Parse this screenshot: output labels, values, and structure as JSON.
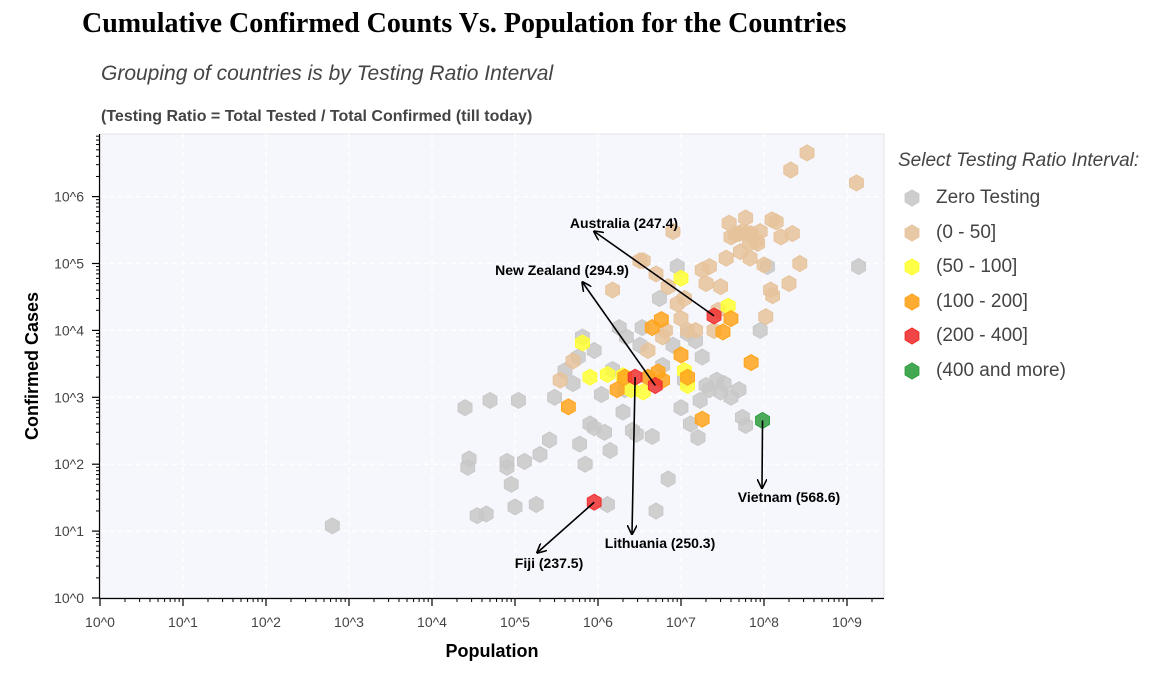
{
  "header": {
    "title": "Cumulative Confirmed Counts Vs. Population for the Countries",
    "subtitle": "Grouping of countries is by Testing Ratio Interval",
    "note": "(Testing Ratio = Total Tested / Total Confirmed (till today)"
  },
  "legend": {
    "title": "Select Testing Ratio Interval:",
    "items": [
      {
        "label": "Zero Testing",
        "color": "#c8c8c8"
      },
      {
        "label": "(0 - 50]",
        "color": "#e6c39b"
      },
      {
        "label": "(50 - 100]",
        "color": "#ffff33"
      },
      {
        "label": "(100 - 200]",
        "color": "#ffa41c"
      },
      {
        "label": "(200 - 400]",
        "color": "#f03030"
      },
      {
        "label": "(400 and more)",
        "color": "#2e9e3e"
      }
    ]
  },
  "chart_data": {
    "type": "scatter",
    "xlabel": "Population",
    "ylabel": "Confirmed Cases",
    "xscale": "log",
    "yscale": "log",
    "xlim": [
      1,
      2000000000
    ],
    "ylim": [
      1,
      8000000
    ],
    "grid": true,
    "legend_position": "right",
    "xticks": [
      "10^0",
      "10^1",
      "10^2",
      "10^3",
      "10^4",
      "10^5",
      "10^6",
      "10^7",
      "10^8",
      "10^9"
    ],
    "yticks": [
      "10^0",
      "10^1",
      "10^2",
      "10^3",
      "10^4",
      "10^5",
      "10^6"
    ],
    "series": [
      {
        "name": "Zero Testing",
        "color": "#c8c8c8",
        "points": [
          [
            630,
            12
          ],
          [
            25000,
            700
          ],
          [
            28000,
            120
          ],
          [
            27000,
            90
          ],
          [
            50000,
            900
          ],
          [
            35000,
            17
          ],
          [
            45000,
            18
          ],
          [
            80000,
            110
          ],
          [
            80000,
            90
          ],
          [
            90000,
            50
          ],
          [
            100000,
            23
          ],
          [
            110000,
            900
          ],
          [
            130000,
            110
          ],
          [
            180000,
            25
          ],
          [
            200000,
            140
          ],
          [
            260000,
            230
          ],
          [
            300000,
            1000
          ],
          [
            400000,
            2500
          ],
          [
            500000,
            1600
          ],
          [
            600000,
            200
          ],
          [
            580000,
            4000
          ],
          [
            700000,
            100
          ],
          [
            650000,
            8000
          ],
          [
            800000,
            400
          ],
          [
            900000,
            350
          ],
          [
            900000,
            5000
          ],
          [
            1100000,
            1100
          ],
          [
            1200000,
            300
          ],
          [
            1300000,
            25
          ],
          [
            1400000,
            160
          ],
          [
            1500000,
            2600
          ],
          [
            1800000,
            11000
          ],
          [
            2000000,
            600
          ],
          [
            2100000,
            1300
          ],
          [
            2200000,
            8000
          ],
          [
            2600000,
            320
          ],
          [
            2900000,
            280
          ],
          [
            3200000,
            6000
          ],
          [
            3400000,
            11000
          ],
          [
            4000000,
            2000
          ],
          [
            4500000,
            260
          ],
          [
            5000000,
            20
          ],
          [
            5500000,
            30000
          ],
          [
            6000000,
            3000
          ],
          [
            7000000,
            60
          ],
          [
            8000000,
            6000
          ],
          [
            9000000,
            90000
          ],
          [
            10000000,
            700
          ],
          [
            11000000,
            1800
          ],
          [
            12000000,
            9000
          ],
          [
            13000000,
            400
          ],
          [
            15000000,
            7000
          ],
          [
            16000000,
            250
          ],
          [
            17000000,
            900
          ],
          [
            18000000,
            4000
          ],
          [
            20000000,
            1500
          ],
          [
            22000000,
            1300
          ],
          [
            27000000,
            1800
          ],
          [
            30000000,
            1200
          ],
          [
            33000000,
            1600
          ],
          [
            40000000,
            1000
          ],
          [
            50000000,
            1300
          ],
          [
            55000000,
            500
          ],
          [
            60000000,
            380
          ],
          [
            90000000,
            10000
          ],
          [
            110000000,
            90000
          ],
          [
            1380000000,
            90000
          ]
        ]
      },
      {
        "name": "(0 - 50]",
        "color": "#e6c39b",
        "points": [
          [
            350000,
            1800
          ],
          [
            500000,
            3500
          ],
          [
            1500000,
            40000
          ],
          [
            3500000,
            110000
          ],
          [
            4000000,
            5000
          ],
          [
            5000000,
            70000
          ],
          [
            6000000,
            8000
          ],
          [
            7000000,
            45000
          ],
          [
            9000000,
            25000
          ],
          [
            10000000,
            15000
          ],
          [
            11000000,
            30000
          ],
          [
            12000000,
            10000
          ],
          [
            15000000,
            10000
          ],
          [
            18000000,
            80000
          ],
          [
            20000000,
            50000
          ],
          [
            22000000,
            90000
          ],
          [
            25000000,
            10000
          ],
          [
            28000000,
            20000
          ],
          [
            30000000,
            45000
          ],
          [
            35000000,
            120000
          ],
          [
            38000000,
            400000
          ],
          [
            40000000,
            250000
          ],
          [
            45000000,
            270000
          ],
          [
            50000000,
            280000
          ],
          [
            52000000,
            150000
          ],
          [
            55000000,
            300000
          ],
          [
            60000000,
            480000
          ],
          [
            63000000,
            280000
          ],
          [
            67000000,
            200000
          ],
          [
            68000000,
            120000
          ],
          [
            70000000,
            280000
          ],
          [
            80000000,
            220000
          ],
          [
            84000000,
            200000
          ],
          [
            90000000,
            300000
          ],
          [
            100000000,
            95000
          ],
          [
            105000000,
            16000
          ],
          [
            120000000,
            40000
          ],
          [
            125000000,
            450000
          ],
          [
            127000000,
            33000
          ],
          [
            140000000,
            420000
          ],
          [
            160000000,
            250000
          ],
          [
            200000000,
            50000
          ],
          [
            210000000,
            2500000
          ],
          [
            220000000,
            280000
          ],
          [
            270000000,
            100000
          ],
          [
            330000000,
            4500000
          ],
          [
            1300000000,
            1600000
          ],
          [
            8000000,
            300000
          ],
          [
            3200000,
            110000
          ],
          [
            6500000,
            10000
          ]
        ]
      },
      {
        "name": "(50 - 100]",
        "color": "#ffff33",
        "points": [
          [
            650000,
            6500
          ],
          [
            800000,
            2000
          ],
          [
            1300000,
            2200
          ],
          [
            2000000,
            2100
          ],
          [
            2500000,
            1300
          ],
          [
            3500000,
            1200
          ],
          [
            10000000,
            60000
          ],
          [
            11000000,
            2500
          ],
          [
            12000000,
            1500
          ],
          [
            37000000,
            23000
          ]
        ]
      },
      {
        "name": "(100 - 200]",
        "color": "#ffa41c",
        "points": [
          [
            440000,
            720
          ],
          [
            1700000,
            1300
          ],
          [
            2100000,
            2000
          ],
          [
            4000000,
            2000
          ],
          [
            5300000,
            2400
          ],
          [
            5800000,
            14500
          ],
          [
            10000000,
            4300
          ],
          [
            12000000,
            2000
          ],
          [
            18000000,
            470
          ],
          [
            32000000,
            9500
          ],
          [
            70000000,
            3300
          ],
          [
            4500000,
            11000
          ],
          [
            6000000,
            1800
          ],
          [
            40000000,
            15000
          ]
        ]
      },
      {
        "name": "(200 - 400]",
        "color": "#f03030",
        "points": [
          [
            900000,
            27
          ],
          [
            2800000,
            2000
          ],
          [
            4900000,
            1500
          ],
          [
            25000000,
            16500
          ]
        ]
      },
      {
        "name": "(400 and more)",
        "color": "#2e9e3e",
        "points": [
          [
            96000000,
            450
          ]
        ]
      }
    ],
    "annotations": [
      {
        "label": "Australia (247.4)"
      },
      {
        "label": "New Zealand (294.9)"
      },
      {
        "label": "Lithuania (250.3)"
      },
      {
        "label": "Fiji (237.5)"
      },
      {
        "label": "Vietnam (568.6)"
      }
    ]
  }
}
